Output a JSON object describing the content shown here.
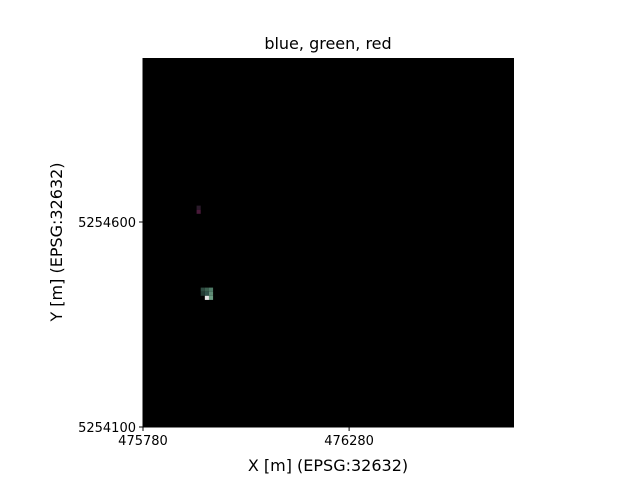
{
  "chart_data": {
    "type": "heatmap",
    "title": "blue, green, red",
    "xlabel": "X [m] (EPSG:32632)",
    "ylabel": "Y [m] (EPSG:32632)",
    "xlim": [
      475780,
      476680
    ],
    "ylim": [
      5254100,
      5255000
    ],
    "xticks": [
      475780,
      476280
    ],
    "yticks": [
      5254100,
      5254600
    ],
    "grid": false,
    "background_color": "#000000",
    "cell_size": 10,
    "pixels": [
      {
        "x": 475915,
        "y": 5254635,
        "color": "#2a1a2a"
      },
      {
        "x": 475915,
        "y": 5254625,
        "color": "#4a1a3a"
      },
      {
        "x": 475925,
        "y": 5254435,
        "color": "#2e4a40"
      },
      {
        "x": 475935,
        "y": 5254435,
        "color": "#3c6050"
      },
      {
        "x": 475945,
        "y": 5254435,
        "color": "#4e7a66"
      },
      {
        "x": 475925,
        "y": 5254425,
        "color": "#223a32"
      },
      {
        "x": 475935,
        "y": 5254425,
        "color": "#30524a"
      },
      {
        "x": 475945,
        "y": 5254425,
        "color": "#5e8a74"
      },
      {
        "x": 475945,
        "y": 5254415,
        "color": "#6a9a80"
      },
      {
        "x": 475935,
        "y": 5254415,
        "color": "#e6e6e6"
      }
    ]
  }
}
